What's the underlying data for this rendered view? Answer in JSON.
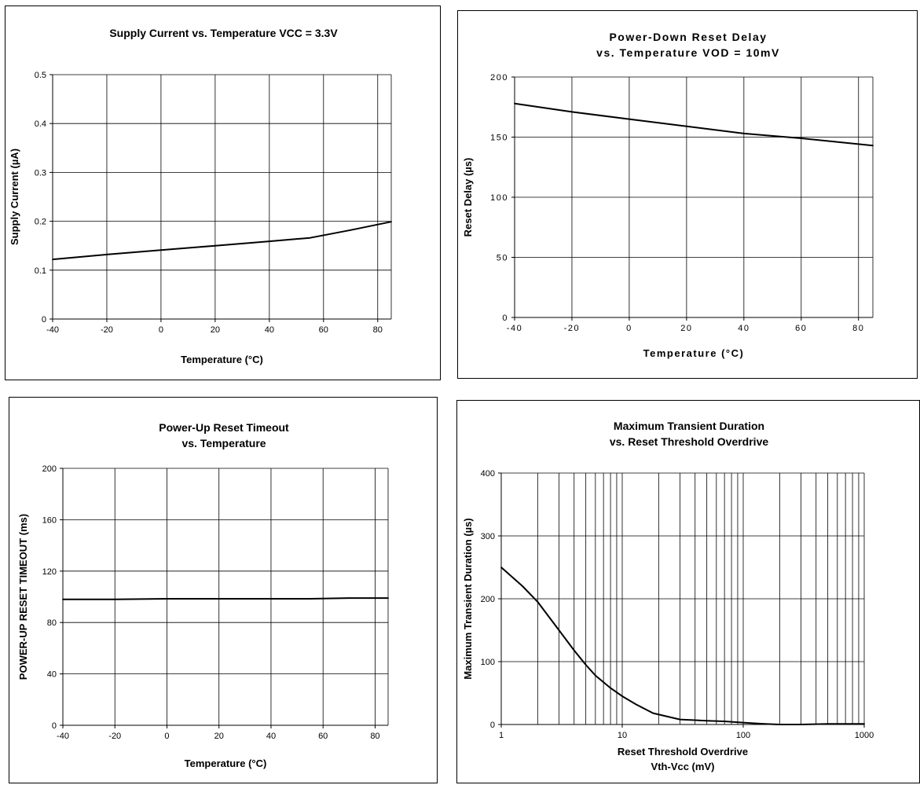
{
  "chart_data": [
    {
      "type": "line",
      "title": "Supply Current vs. Temperature VCC = 3.3V",
      "xlabel": "Temperature (°C)",
      "ylabel": "Supply Current (µA)",
      "xlim": [
        -40,
        85
      ],
      "ylim": [
        0,
        0.5
      ],
      "x_ticks": [
        -40,
        -20,
        0,
        20,
        40,
        60,
        80
      ],
      "x_tick_labels": [
        "-40",
        "-20",
        "0",
        "20",
        "40",
        "60",
        "80"
      ],
      "y_ticks": [
        0,
        0.1,
        0.2,
        0.3,
        0.4,
        0.5
      ],
      "y_tick_labels": [
        "0",
        "0.1",
        "0.2",
        "0.3",
        "0.4",
        "0.5"
      ],
      "x_grid": [
        -40,
        -20,
        0,
        20,
        40,
        60,
        80,
        85
      ],
      "grid": true,
      "series": [
        {
          "x": [
            -40,
            -20,
            0,
            20,
            40,
            55,
            70,
            85
          ],
          "values": [
            0.122,
            0.132,
            0.141,
            0.15,
            0.159,
            0.166,
            0.182,
            0.199
          ]
        }
      ]
    },
    {
      "type": "line",
      "title": "Power-Down Reset Delay\nvs. Temperature VOD = 10mV",
      "xlabel": "Temperature (°C)",
      "ylabel": "Reset Delay (µs)",
      "xlim": [
        -40,
        85
      ],
      "ylim": [
        0,
        200
      ],
      "x_ticks": [
        -40,
        -20,
        0,
        20,
        40,
        60,
        80
      ],
      "x_tick_labels": [
        "-40",
        "-20",
        "0",
        "20",
        "40",
        "60",
        "80"
      ],
      "y_ticks": [
        0,
        50,
        100,
        150,
        200
      ],
      "y_tick_labels": [
        "0",
        "50",
        "100",
        "150",
        "200"
      ],
      "x_grid": [
        -40,
        -20,
        0,
        20,
        40,
        60,
        80,
        85
      ],
      "grid": true,
      "series": [
        {
          "x": [
            -40,
            -20,
            0,
            20,
            40,
            60,
            85
          ],
          "values": [
            178,
            171,
            165,
            159,
            153,
            149,
            143
          ]
        }
      ]
    },
    {
      "type": "line",
      "title": "Power-Up Reset Timeout\nvs. Temperature",
      "xlabel": "Temperature (°C)",
      "ylabel": "POWER-UP RESET TIMEOUT (ms)",
      "xlim": [
        -40,
        85
      ],
      "ylim": [
        0,
        200
      ],
      "x_ticks": [
        -40,
        -20,
        0,
        20,
        40,
        60,
        80
      ],
      "x_tick_labels": [
        "-40",
        "-20",
        "0",
        "20",
        "40",
        "60",
        "80"
      ],
      "y_ticks": [
        0,
        40,
        80,
        120,
        160,
        200
      ],
      "y_tick_labels": [
        "0",
        "40",
        "80",
        "120",
        "160",
        "200"
      ],
      "x_grid": [
        -40,
        -20,
        0,
        20,
        40,
        60,
        80,
        85
      ],
      "grid": true,
      "series": [
        {
          "x": [
            -40,
            -20,
            0,
            20,
            40,
            55,
            70,
            85
          ],
          "values": [
            98,
            98,
            98.5,
            98.5,
            98.5,
            98.5,
            99,
            99
          ]
        }
      ]
    },
    {
      "type": "line",
      "title": "Maximum Transient Duration\nvs. Reset Threshold Overdrive",
      "xlabel": "Reset Threshold Overdrive\nVth-Vcc (mV)",
      "ylabel": "Maximum Transient Duration (µs)",
      "xscale": "log",
      "xlim": [
        1,
        1000
      ],
      "ylim": [
        0,
        400
      ],
      "x_ticks": [
        1,
        10,
        100,
        1000
      ],
      "x_tick_labels": [
        "1",
        "10",
        "100",
        "1000"
      ],
      "y_ticks": [
        0,
        100,
        200,
        300,
        400
      ],
      "y_tick_labels": [
        "0",
        "100",
        "200",
        "300",
        "400"
      ],
      "grid": true,
      "series": [
        {
          "x": [
            1,
            1.5,
            2,
            3,
            4,
            5,
            6,
            8,
            10,
            13,
            18,
            30,
            50,
            70,
            100,
            150,
            200,
            300,
            500,
            700,
            1000
          ],
          "values": [
            250,
            220,
            195,
            150,
            118,
            95,
            78,
            58,
            45,
            32,
            18,
            8,
            6,
            5,
            3,
            1,
            0,
            0,
            1,
            1,
            1
          ]
        }
      ]
    }
  ]
}
